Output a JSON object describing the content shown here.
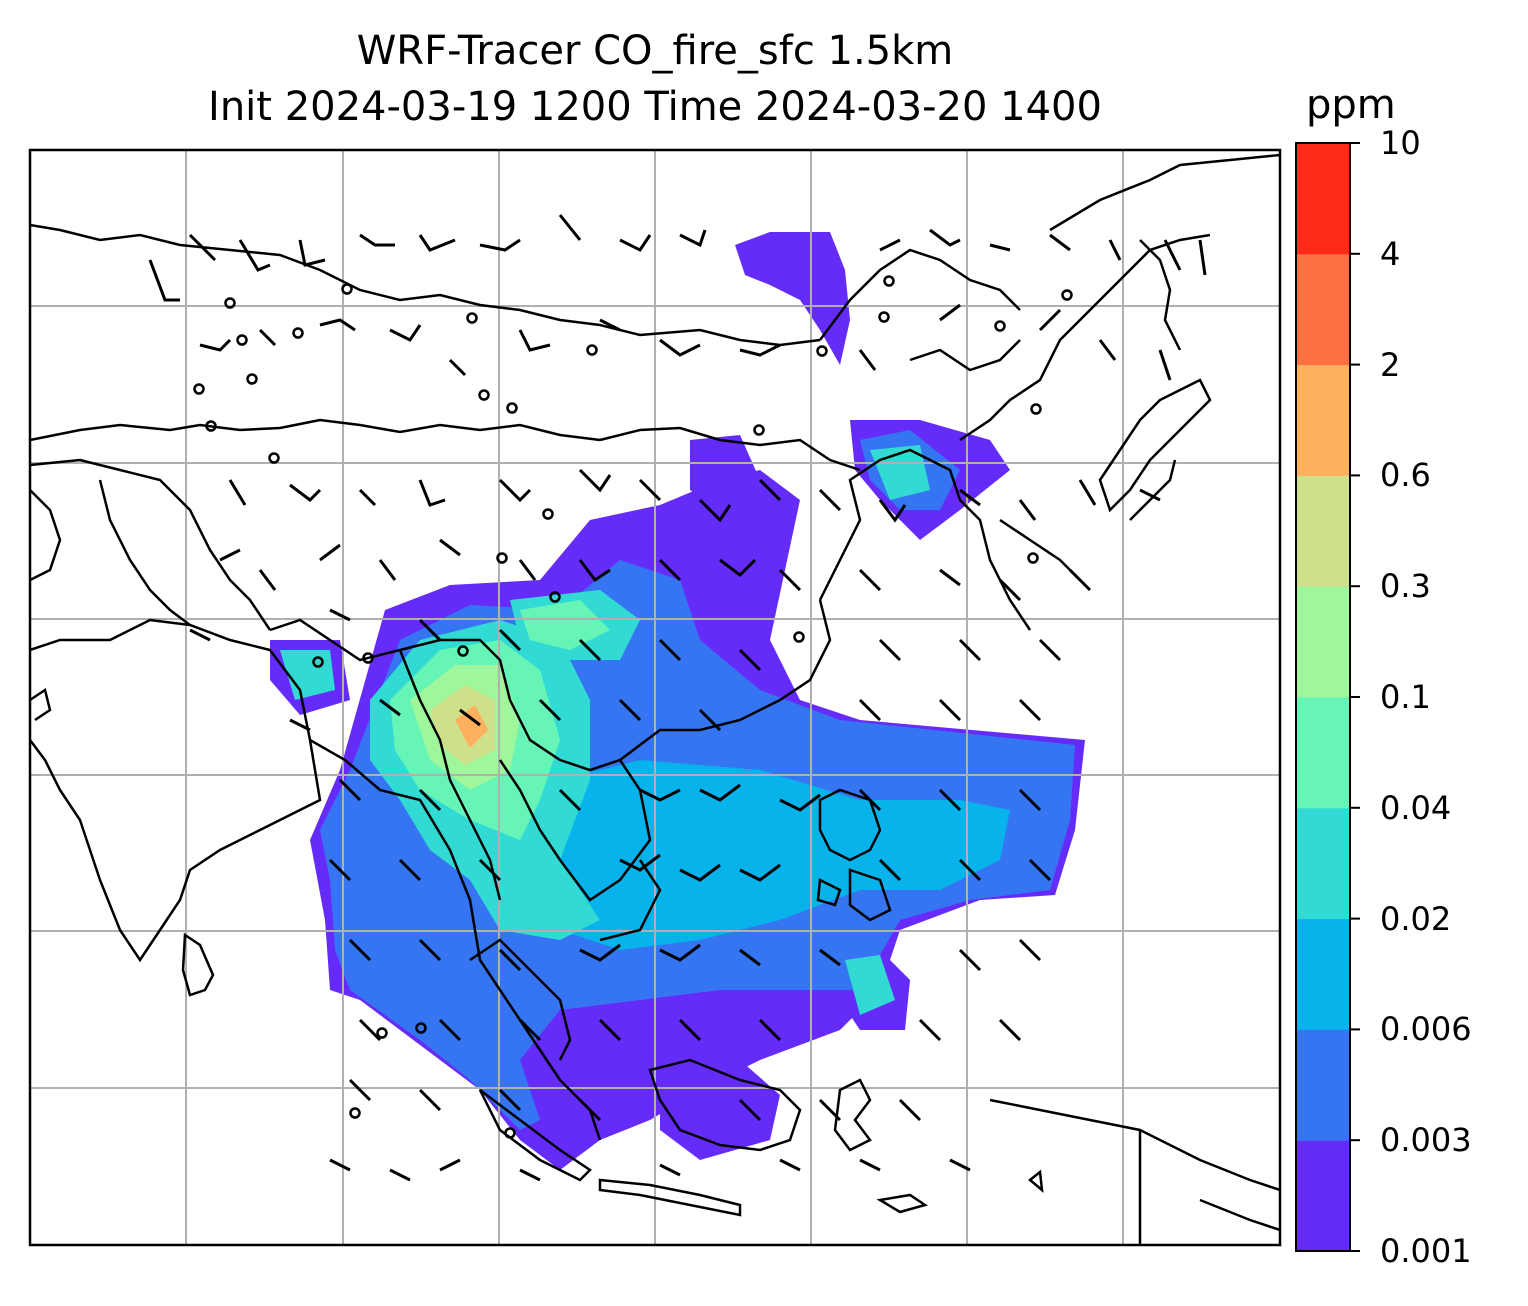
{
  "title": {
    "line1": "WRF-Tracer CO_fire_sfc 1.5km",
    "line2": "Init 2024-03-19 1200 Time 2024-03-20 1400"
  },
  "colorbar": {
    "unit": "ppm",
    "levels": [
      "0.001",
      "0.003",
      "0.006",
      "0.02",
      "0.04",
      "0.1",
      "0.3",
      "0.6",
      "2",
      "4",
      "10"
    ],
    "colors": [
      "#652cf9",
      "#3575f2",
      "#08b2ea",
      "#31dbd4",
      "#67f5b7",
      "#9ef79a",
      "#cfe08b",
      "#ffb05f",
      "#ff7141",
      "#ff2a18"
    ]
  },
  "map": {
    "gridlines": true,
    "features": [
      "coastline",
      "country-borders",
      "wind-barbs",
      "co-concentration-field"
    ]
  }
}
